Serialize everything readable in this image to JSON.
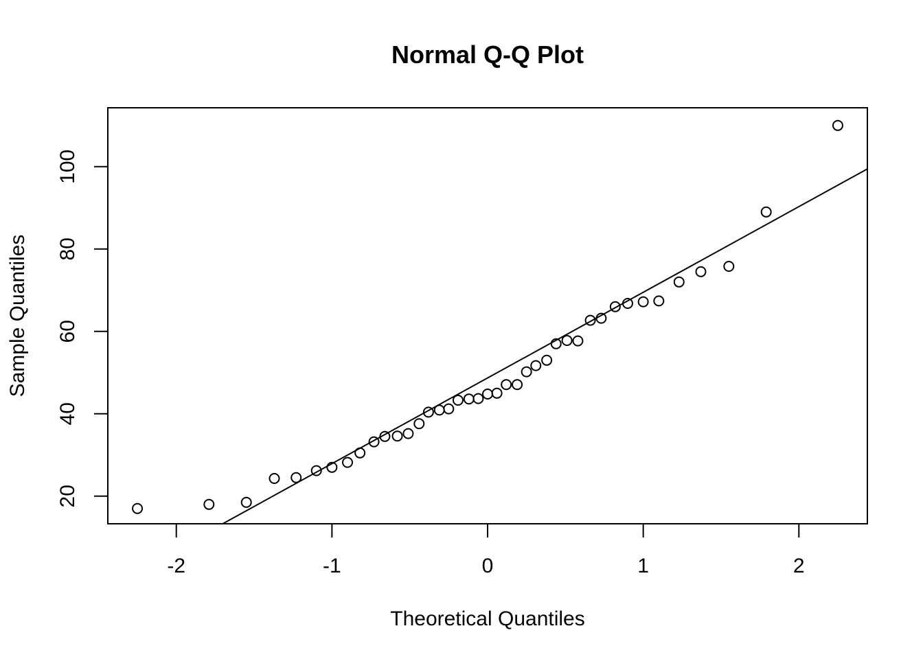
{
  "chart_data": {
    "type": "scatter",
    "title": "Normal Q-Q Plot",
    "xlabel": "Theoretical Quantiles",
    "ylabel": "Sample Quantiles",
    "xlim": [
      -2.44,
      2.44
    ],
    "ylim": [
      13.3,
      114.3
    ],
    "x_ticks": [
      -2,
      -1,
      0,
      1,
      2
    ],
    "x_tick_labels": [
      "-2",
      "-1",
      "0",
      "1",
      "2"
    ],
    "y_ticks": [
      20,
      40,
      60,
      80,
      100
    ],
    "y_tick_labels": [
      "20",
      "40",
      "60",
      "80",
      "100"
    ],
    "grid": false,
    "reference_line": {
      "intercept": 48.7,
      "slope": 20.8
    },
    "points": [
      {
        "x": -2.25,
        "y": 17.0
      },
      {
        "x": -1.79,
        "y": 18.0
      },
      {
        "x": -1.55,
        "y": 18.5
      },
      {
        "x": -1.37,
        "y": 24.3
      },
      {
        "x": -1.23,
        "y": 24.5
      },
      {
        "x": -1.1,
        "y": 26.2
      },
      {
        "x": -1.0,
        "y": 27.0
      },
      {
        "x": -0.9,
        "y": 28.2
      },
      {
        "x": -0.82,
        "y": 30.5
      },
      {
        "x": -0.73,
        "y": 33.2
      },
      {
        "x": -0.66,
        "y": 34.5
      },
      {
        "x": -0.58,
        "y": 34.6
      },
      {
        "x": -0.51,
        "y": 35.2
      },
      {
        "x": -0.44,
        "y": 37.6
      },
      {
        "x": -0.38,
        "y": 40.4
      },
      {
        "x": -0.31,
        "y": 40.9
      },
      {
        "x": -0.25,
        "y": 41.2
      },
      {
        "x": -0.19,
        "y": 43.3
      },
      {
        "x": -0.12,
        "y": 43.6
      },
      {
        "x": -0.06,
        "y": 43.7
      },
      {
        "x": 0.0,
        "y": 44.8
      },
      {
        "x": 0.06,
        "y": 45.0
      },
      {
        "x": 0.12,
        "y": 47.1
      },
      {
        "x": 0.19,
        "y": 47.1
      },
      {
        "x": 0.25,
        "y": 50.2
      },
      {
        "x": 0.31,
        "y": 51.7
      },
      {
        "x": 0.38,
        "y": 53.0
      },
      {
        "x": 0.44,
        "y": 57.0
      },
      {
        "x": 0.51,
        "y": 57.8
      },
      {
        "x": 0.58,
        "y": 57.7
      },
      {
        "x": 0.66,
        "y": 62.7
      },
      {
        "x": 0.73,
        "y": 63.2
      },
      {
        "x": 0.82,
        "y": 66.0
      },
      {
        "x": 0.9,
        "y": 66.8
      },
      {
        "x": 1.0,
        "y": 67.2
      },
      {
        "x": 1.1,
        "y": 67.4
      },
      {
        "x": 1.23,
        "y": 72.0
      },
      {
        "x": 1.37,
        "y": 74.5
      },
      {
        "x": 1.55,
        "y": 75.8
      },
      {
        "x": 1.79,
        "y": 89.0
      },
      {
        "x": 2.25,
        "y": 110.0
      }
    ]
  }
}
